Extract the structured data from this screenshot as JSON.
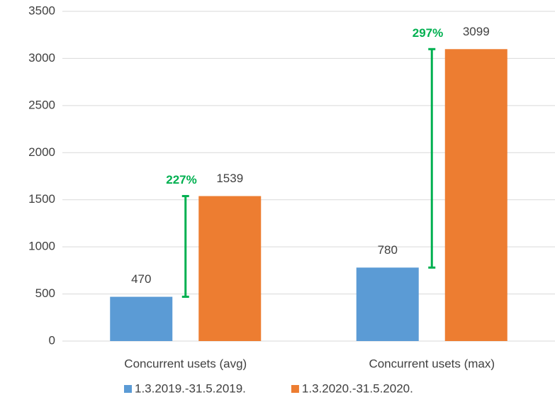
{
  "chart_data": {
    "type": "bar",
    "categories": [
      "Concurrent usets (avg)",
      "Concurrent usets (max)"
    ],
    "series": [
      {
        "name": "1.3.2019.-31.5.2019.",
        "color": "#5b9bd5",
        "values": [
          470,
          780
        ]
      },
      {
        "name": "1.3.2020.-31.5.2020.",
        "color": "#ed7d31",
        "values": [
          1539,
          3099
        ]
      }
    ],
    "annotations": [
      "227%",
      "297%"
    ],
    "annotation_color": "#00b050",
    "ylim": [
      0,
      3500
    ],
    "yticks": [
      0,
      500,
      1000,
      1500,
      2000,
      2500,
      3000,
      3500
    ],
    "grid": true,
    "legend": "bottom"
  }
}
